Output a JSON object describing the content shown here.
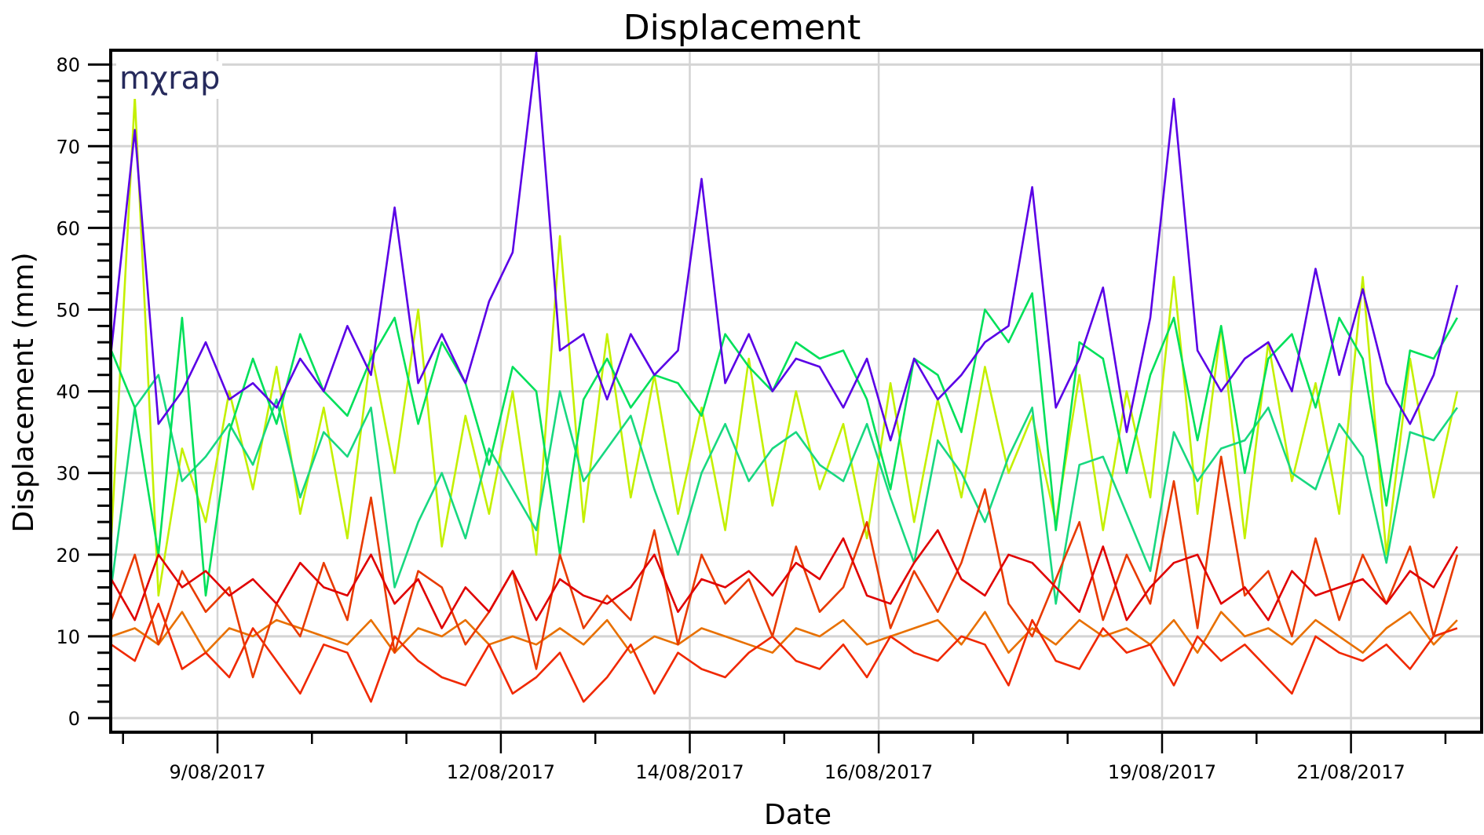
{
  "chart_data": {
    "type": "line",
    "title": "Displacement",
    "xlabel": "Date",
    "ylabel": "Displacement (mm)",
    "logo": "mχrap",
    "ylim": [
      0,
      80
    ],
    "yticks": [
      "0",
      "10",
      "20",
      "30",
      "40",
      "50",
      "60",
      "70",
      "80"
    ],
    "xlim": [
      "2017-08-07T21:00",
      "2017-08-22T05:30"
    ],
    "xtick_days": [
      8,
      9,
      10,
      11,
      12,
      13,
      14,
      15,
      16,
      17,
      18,
      19,
      20,
      21,
      22
    ],
    "xtick_labels": [
      {
        "day": 9,
        "label": "9/08/2017"
      },
      {
        "day": 12,
        "label": "12/08/2017"
      },
      {
        "day": 14,
        "label": "14/08/2017"
      },
      {
        "day": 16,
        "label": "16/08/2017"
      },
      {
        "day": 19,
        "label": "19/08/2017"
      },
      {
        "day": 21,
        "label": "21/08/2017"
      }
    ],
    "grid": true,
    "legend": "none",
    "x": [
      "2017-08-07T21:00",
      "2017-08-08T03:00",
      "2017-08-08T09:00",
      "2017-08-08T15:00",
      "2017-08-08T21:00",
      "2017-08-09T03:00",
      "2017-08-09T09:00",
      "2017-08-09T15:00",
      "2017-08-09T21:00",
      "2017-08-10T03:00",
      "2017-08-10T09:00",
      "2017-08-10T15:00",
      "2017-08-10T21:00",
      "2017-08-11T03:00",
      "2017-08-11T09:00",
      "2017-08-11T15:00",
      "2017-08-11T21:00",
      "2017-08-12T03:00",
      "2017-08-12T09:00",
      "2017-08-12T15:00",
      "2017-08-12T21:00",
      "2017-08-13T03:00",
      "2017-08-13T09:00",
      "2017-08-13T15:00",
      "2017-08-13T21:00",
      "2017-08-14T03:00",
      "2017-08-14T09:00",
      "2017-08-14T15:00",
      "2017-08-14T21:00",
      "2017-08-15T03:00",
      "2017-08-15T09:00",
      "2017-08-15T15:00",
      "2017-08-15T21:00",
      "2017-08-16T03:00",
      "2017-08-16T09:00",
      "2017-08-16T15:00",
      "2017-08-16T21:00",
      "2017-08-17T03:00",
      "2017-08-17T09:00",
      "2017-08-17T15:00",
      "2017-08-17T21:00",
      "2017-08-18T03:00",
      "2017-08-18T09:00",
      "2017-08-18T15:00",
      "2017-08-18T21:00",
      "2017-08-19T03:00",
      "2017-08-19T09:00",
      "2017-08-19T15:00",
      "2017-08-19T21:00",
      "2017-08-20T03:00",
      "2017-08-20T09:00",
      "2017-08-20T15:00",
      "2017-08-20T21:00",
      "2017-08-21T03:00",
      "2017-08-21T09:00",
      "2017-08-21T15:00",
      "2017-08-21T21:00",
      "2017-08-22T03:00"
    ],
    "series": [
      {
        "color": "#c4f000",
        "values": [
          22,
          76,
          15,
          33,
          24,
          40,
          28,
          43,
          25,
          38,
          22,
          45,
          30,
          50,
          21,
          37,
          25,
          40,
          20,
          59,
          24,
          47,
          27,
          42,
          25,
          38,
          23,
          44,
          26,
          40,
          28,
          36,
          22,
          41,
          24,
          39,
          27,
          43,
          30,
          37,
          24,
          42,
          23,
          40,
          27,
          54,
          25,
          48,
          22,
          46,
          29,
          41,
          25,
          54,
          20,
          44,
          27,
          40
        ]
      },
      {
        "color": "#18d880",
        "values": [
          16,
          38,
          42,
          29,
          32,
          36,
          31,
          39,
          27,
          35,
          32,
          38,
          16,
          24,
          30,
          22,
          33,
          28,
          23,
          40,
          29,
          33,
          37,
          28,
          20,
          30,
          36,
          29,
          33,
          35,
          31,
          29,
          36,
          27,
          19,
          34,
          30,
          24,
          32,
          38,
          14,
          31,
          32,
          25,
          18,
          35,
          29,
          33,
          34,
          38,
          30,
          28,
          36,
          32,
          19,
          35,
          34,
          38
        ]
      },
      {
        "color": "#00e05a",
        "values": [
          45,
          38,
          20,
          49,
          15,
          35,
          44,
          36,
          47,
          40,
          37,
          44,
          49,
          36,
          46,
          41,
          31,
          43,
          40,
          20,
          39,
          44,
          38,
          42,
          41,
          37,
          47,
          43,
          40,
          46,
          44,
          45,
          39,
          28,
          44,
          42,
          35,
          50,
          46,
          52,
          23,
          46,
          44,
          30,
          42,
          49,
          34,
          48,
          30,
          44,
          47,
          38,
          49,
          44,
          26,
          45,
          44,
          49
        ]
      },
      {
        "color": "#5a00e6",
        "values": [
          45,
          72,
          36,
          40,
          46,
          39,
          41,
          38,
          44,
          40,
          48,
          42,
          62.5,
          41,
          47,
          41,
          51,
          57,
          81.5,
          45,
          47,
          39,
          47,
          42,
          45,
          66,
          41,
          47,
          40,
          44,
          43,
          38,
          44,
          34,
          44,
          39,
          42,
          46,
          48,
          65,
          38,
          44,
          52.7,
          35,
          49,
          75.8,
          45,
          40,
          44,
          46,
          40,
          55,
          42,
          52.5,
          41,
          36,
          42,
          53
        ]
      },
      {
        "color": "#e87000",
        "values": [
          10,
          11,
          9,
          13,
          8,
          11,
          10,
          12,
          11,
          10,
          9,
          12,
          8,
          11,
          10,
          12,
          9,
          10,
          9,
          11,
          9,
          12,
          8,
          10,
          9,
          11,
          10,
          9,
          8,
          11,
          10,
          12,
          9,
          10,
          11,
          12,
          9,
          13,
          8,
          11,
          9,
          12,
          10,
          11,
          9,
          12,
          8,
          13,
          10,
          11,
          9,
          12,
          10,
          8,
          11,
          13,
          9,
          12
        ]
      },
      {
        "color": "#f02800",
        "values": [
          9,
          7,
          14,
          6,
          8,
          5,
          11,
          7,
          3,
          9,
          8,
          2,
          10,
          7,
          5,
          4,
          9,
          3,
          5,
          8,
          2,
          5,
          9,
          3,
          8,
          6,
          5,
          8,
          10,
          7,
          6,
          9,
          5,
          10,
          8,
          7,
          10,
          9,
          4,
          12,
          7,
          6,
          11,
          8,
          9,
          4,
          10,
          7,
          9,
          6,
          3,
          10,
          8,
          7,
          9,
          6,
          10,
          11
        ]
      },
      {
        "color": "#e83a00",
        "values": [
          12,
          20,
          9,
          18,
          13,
          16,
          5,
          14,
          10,
          19,
          12,
          27,
          8,
          18,
          16,
          9,
          13,
          18,
          6,
          20,
          11,
          15,
          12,
          23,
          9,
          20,
          14,
          17,
          10,
          21,
          13,
          16,
          24,
          11,
          18,
          13,
          19,
          28,
          14,
          10,
          17,
          24,
          12,
          20,
          14,
          29,
          11,
          32,
          15,
          18,
          10,
          22,
          12,
          20,
          14,
          21,
          10,
          20
        ]
      },
      {
        "color": "#e00000",
        "values": [
          17,
          12,
          20,
          16,
          18,
          15,
          17,
          14,
          19,
          16,
          15,
          20,
          14,
          17,
          11,
          16,
          13,
          18,
          12,
          17,
          15,
          14,
          16,
          20,
          13,
          17,
          16,
          18,
          15,
          19,
          17,
          22,
          15,
          14,
          19,
          23,
          17,
          15,
          20,
          19,
          16,
          13,
          21,
          12,
          16,
          19,
          20,
          14,
          16,
          12,
          18,
          15,
          16,
          17,
          14,
          18,
          16,
          21
        ]
      }
    ]
  }
}
